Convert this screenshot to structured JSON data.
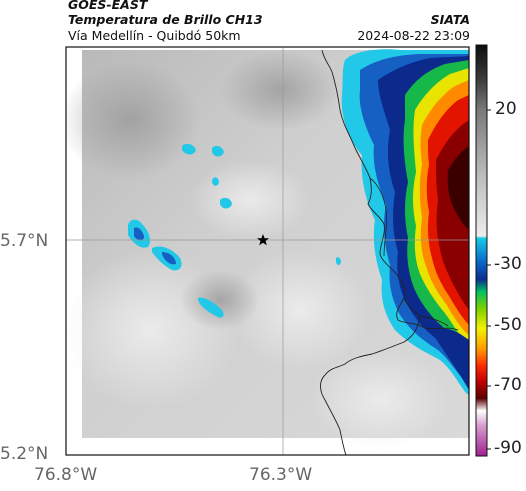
{
  "header": {
    "satellite": "GOES-EAST",
    "product": "Temperatura de Brillo CH13",
    "region": "Vía Medellín - Quibdó 50km",
    "source": "SIATA",
    "datetime": "2024-08-22 23:09"
  },
  "map": {
    "lat_ticks": [
      "5.7°N",
      "5.2°N"
    ],
    "lon_ticks": [
      "76.8°W",
      "76.3°W"
    ],
    "marker_icon": "star-icon"
  },
  "colorbar": {
    "ticks": [
      "20",
      "-30",
      "-50",
      "-70",
      "-90"
    ]
  }
}
